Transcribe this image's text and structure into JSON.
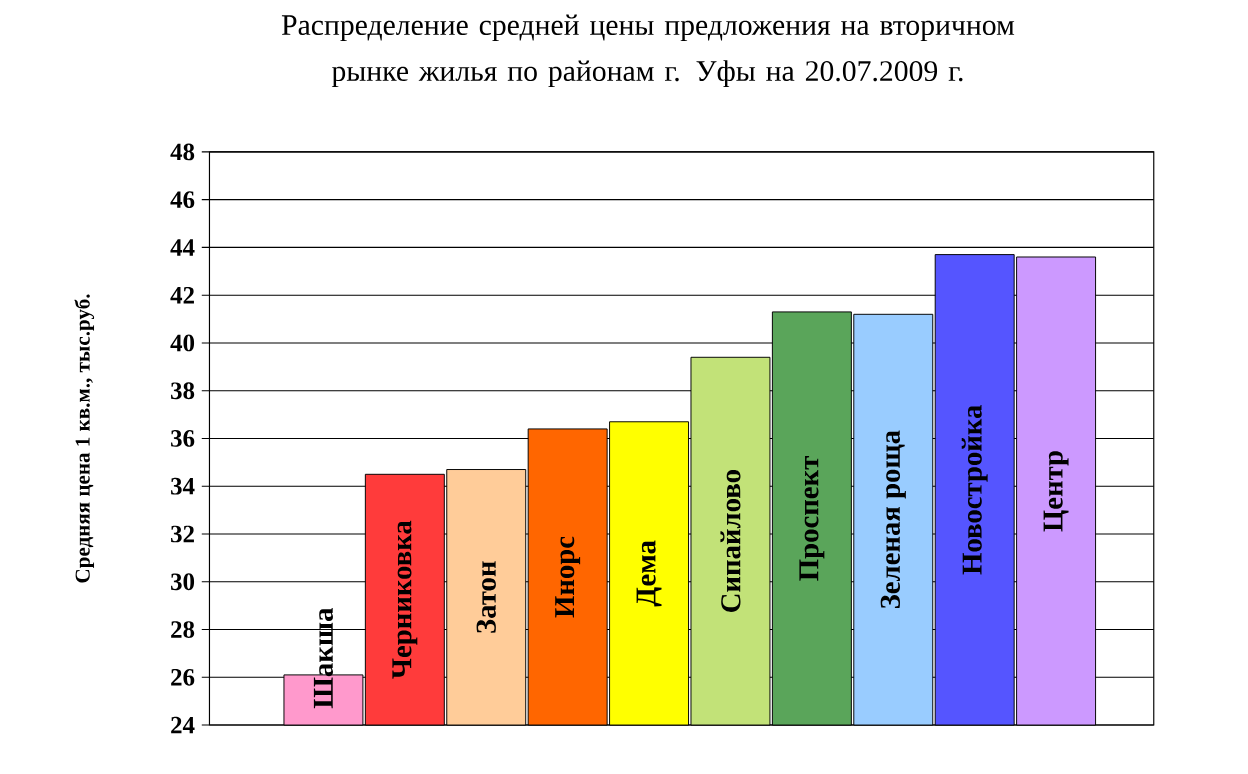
{
  "chart_data": {
    "type": "bar",
    "title": "Распределение средней цены предложения на вторичном рынке жилья по районам г. Уфы на 20.07.2009 г.",
    "ylabel": "Средняя цена 1 кв.м., тыс.руб.",
    "categories": [
      "Шакша",
      "Черниковка",
      "Затон",
      "Инорс",
      "Дема",
      "Сипайлово",
      "Проспект",
      "Зеленая роща",
      "Новостройка",
      "Центр"
    ],
    "values": [
      26.1,
      34.5,
      34.7,
      36.4,
      36.7,
      39.4,
      41.3,
      41.2,
      43.7,
      43.6
    ],
    "colors": [
      "#ff99cc",
      "#ff3b3b",
      "#ffcc99",
      "#ff6600",
      "#ffff00",
      "#c2e278",
      "#5aa55a",
      "#99ccff",
      "#5555ff",
      "#cc99ff"
    ],
    "ylim": [
      24,
      48
    ],
    "yticks": [
      24,
      26,
      28,
      30,
      32,
      34,
      36,
      38,
      40,
      42,
      44,
      46,
      48
    ],
    "grid": "y"
  }
}
